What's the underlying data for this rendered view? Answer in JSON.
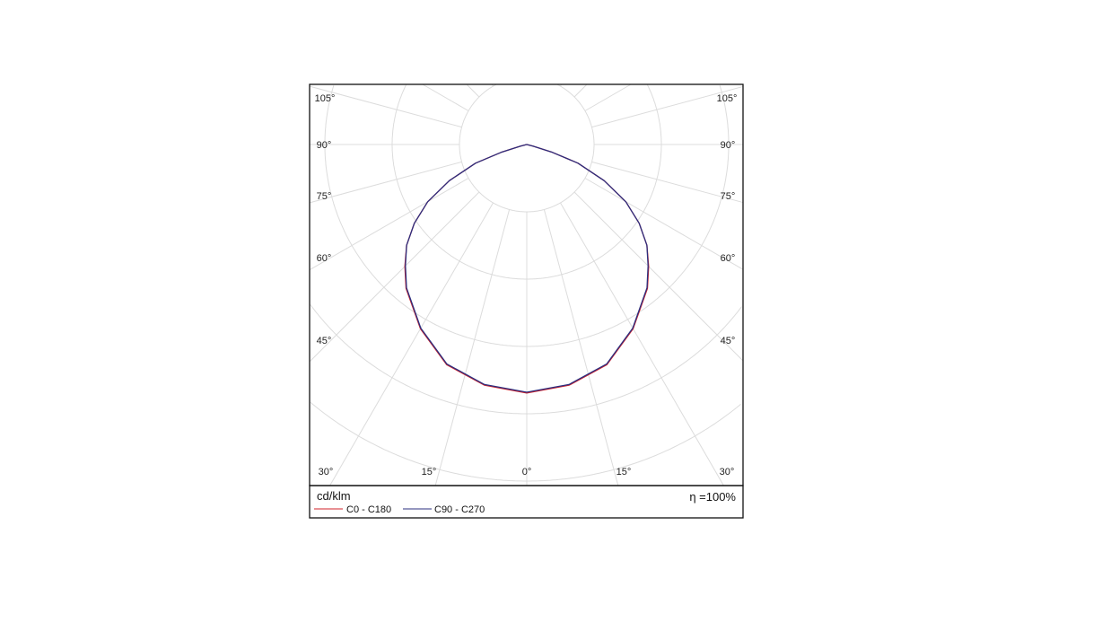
{
  "chart_data": {
    "type": "polar",
    "unit_label": "cd/klm",
    "efficiency_label": "η =100%",
    "angle_ticks": [
      {
        "side": "left",
        "label": "105°",
        "angle": 105
      },
      {
        "side": "left",
        "label": "90°",
        "angle": 90
      },
      {
        "side": "left",
        "label": "75°",
        "angle": 75
      },
      {
        "side": "left",
        "label": "60°",
        "angle": 60
      },
      {
        "side": "left",
        "label": "45°",
        "angle": 45
      },
      {
        "side": "right",
        "label": "105°",
        "angle": 105
      },
      {
        "side": "right",
        "label": "90°",
        "angle": 90
      },
      {
        "side": "right",
        "label": "75°",
        "angle": 75
      },
      {
        "side": "right",
        "label": "60°",
        "angle": 60
      },
      {
        "side": "right",
        "label": "45°",
        "angle": 45
      },
      {
        "side": "bottom-left",
        "label": "30°",
        "angle": 30
      },
      {
        "side": "bottom-left",
        "label": "15°",
        "angle": 15
      },
      {
        "side": "bottom",
        "label": "0°",
        "angle": 0
      },
      {
        "side": "bottom-right",
        "label": "15°",
        "angle": 15
      },
      {
        "side": "bottom-right",
        "label": "30°",
        "angle": 30
      }
    ],
    "angle_step": 15,
    "radial_rings": 5,
    "radial_labels_shown": false,
    "grid": true,
    "legend_placement": "bottom-left",
    "angles": [
      0,
      10,
      20,
      30,
      40,
      45,
      50,
      55,
      60,
      65,
      70,
      73,
      75,
      80,
      90
    ],
    "series": [
      {
        "name": "C0 - C180",
        "color": "#d0202a",
        "values": [
          3.69,
          3.63,
          3.48,
          3.16,
          2.79,
          2.56,
          2.33,
          2.04,
          1.7,
          1.27,
          0.81,
          0.4,
          0.1,
          0,
          0
        ]
      },
      {
        "name": "C90 - C270",
        "color": "#2b2f7f",
        "values": [
          3.68,
          3.62,
          3.47,
          3.15,
          2.78,
          2.55,
          2.33,
          2.04,
          1.7,
          1.27,
          0.81,
          0.4,
          0.1,
          0,
          0
        ]
      }
    ]
  }
}
